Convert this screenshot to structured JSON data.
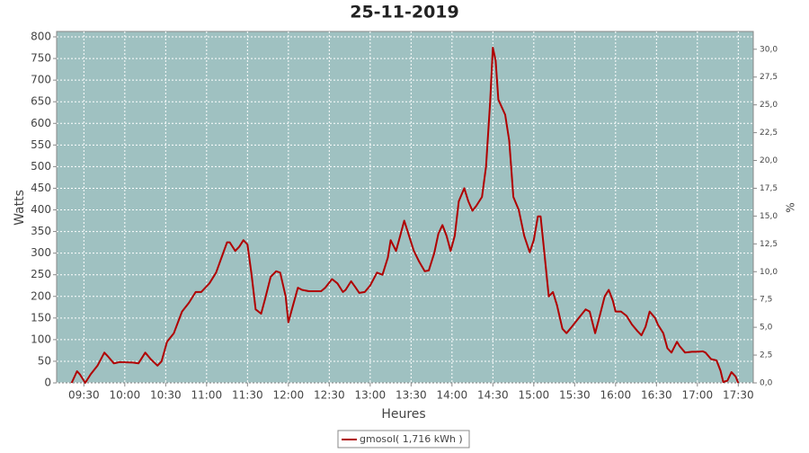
{
  "chart_data": {
    "type": "line",
    "title": "25-11-2019",
    "xlabel": "Heures",
    "ylabel": "Watts",
    "y2label": "%",
    "x": [
      "09:21",
      "09:25",
      "09:27",
      "09:31",
      "09:35",
      "09:40",
      "09:45",
      "09:48",
      "09:52",
      "09:56",
      "10:06",
      "10:10",
      "10:15",
      "10:19",
      "10:24",
      "10:27",
      "10:31",
      "10:36",
      "10:42",
      "10:47",
      "10:52",
      "10:56",
      "11:02",
      "11:07",
      "11:11",
      "11:15",
      "11:17",
      "11:21",
      "11:24",
      "11:27",
      "11:30",
      "11:33",
      "11:36",
      "11:40",
      "11:43",
      "11:47",
      "11:51",
      "11:54",
      "11:58",
      "12:00",
      "12:03",
      "12:07",
      "12:10",
      "12:15",
      "12:19",
      "12:24",
      "12:27",
      "12:32",
      "12:36",
      "12:40",
      "12:42",
      "12:46",
      "12:49",
      "12:52",
      "12:56",
      "13:00",
      "13:05",
      "13:09",
      "13:13",
      "13:15",
      "13:19",
      "13:22",
      "13:25",
      "13:28",
      "13:32",
      "13:36",
      "13:40",
      "13:43",
      "13:47",
      "13:50",
      "13:53",
      "13:56",
      "13:59",
      "14:02",
      "14:05",
      "14:09",
      "14:12",
      "14:15",
      "14:18",
      "14:22",
      "14:25",
      "14:28",
      "14:30",
      "14:32",
      "14:34",
      "14:39",
      "14:42",
      "14:45",
      "14:49",
      "14:53",
      "14:57",
      "15:00",
      "15:03",
      "15:05",
      "15:07",
      "15:11",
      "15:14",
      "15:17",
      "15:21",
      "15:24",
      "15:28",
      "15:33",
      "15:38",
      "15:41",
      "15:45",
      "15:48",
      "15:52",
      "15:55",
      "15:58",
      "16:00",
      "16:04",
      "16:08",
      "16:12",
      "16:16",
      "16:19",
      "16:22",
      "16:25",
      "16:29",
      "16:31",
      "16:35",
      "16:38",
      "16:41",
      "16:45",
      "16:47",
      "16:51",
      "16:56",
      "17:00",
      "17:04",
      "17:06",
      "17:10",
      "17:14",
      "17:17",
      "17:19",
      "17:22",
      "17:25",
      "17:28",
      "17:30"
    ],
    "series": [
      {
        "name": "gmosol( 1,716 kWh )",
        "color": "#b00000",
        "values": [
          0,
          27,
          20,
          0,
          20,
          40,
          70,
          60,
          45,
          48,
          47,
          45,
          70,
          55,
          40,
          50,
          95,
          115,
          165,
          185,
          210,
          210,
          230,
          255,
          290,
          325,
          325,
          305,
          315,
          330,
          320,
          250,
          170,
          160,
          195,
          245,
          258,
          255,
          200,
          140,
          175,
          220,
          215,
          212,
          212,
          212,
          220,
          240,
          230,
          210,
          215,
          235,
          222,
          208,
          210,
          225,
          255,
          250,
          290,
          330,
          305,
          340,
          375,
          345,
          305,
          280,
          258,
          260,
          300,
          345,
          365,
          340,
          305,
          340,
          420,
          450,
          420,
          398,
          410,
          430,
          500,
          650,
          775,
          745,
          655,
          620,
          560,
          430,
          400,
          340,
          302,
          330,
          385,
          385,
          325,
          200,
          210,
          180,
          125,
          115,
          130,
          150,
          170,
          165,
          115,
          150,
          200,
          215,
          190,
          165,
          165,
          155,
          135,
          120,
          110,
          130,
          165,
          150,
          135,
          115,
          80,
          70,
          95,
          85,
          70,
          72,
          72,
          73,
          70,
          55,
          52,
          28,
          2,
          5,
          25,
          15,
          0
        ]
      }
    ],
    "xlim": [
      "09:10",
      "17:41"
    ],
    "xticks": [
      "09:30",
      "10:00",
      "10:30",
      "11:00",
      "11:30",
      "12:00",
      "12:30",
      "13:00",
      "13:30",
      "14:00",
      "14:30",
      "15:00",
      "15:30",
      "16:00",
      "16:30",
      "17:00",
      "17:30"
    ],
    "ylim": [
      0,
      812.5
    ],
    "yticks": [
      0,
      50,
      100,
      150,
      200,
      250,
      300,
      350,
      400,
      450,
      500,
      550,
      600,
      650,
      700,
      750,
      800
    ],
    "y2lim": [
      0,
      31.6
    ],
    "y2ticks": [
      {
        "value": 0,
        "label": "0,0"
      },
      {
        "value": 2.5,
        "label": "2,5"
      },
      {
        "value": 5,
        "label": "5,0"
      },
      {
        "value": 7.5,
        "label": "7,5"
      },
      {
        "value": 10,
        "label": "10,0"
      },
      {
        "value": 12.5,
        "label": "12,5"
      },
      {
        "value": 15,
        "label": "15,0"
      },
      {
        "value": 17.5,
        "label": "17,5"
      },
      {
        "value": 20,
        "label": "20,0"
      },
      {
        "value": 22.5,
        "label": "22,5"
      },
      {
        "value": 25,
        "label": "25,0"
      },
      {
        "value": 27.5,
        "label": "27,5"
      },
      {
        "value": 30,
        "label": "30,0"
      }
    ],
    "grid": true,
    "background": "#9fc1c1"
  }
}
